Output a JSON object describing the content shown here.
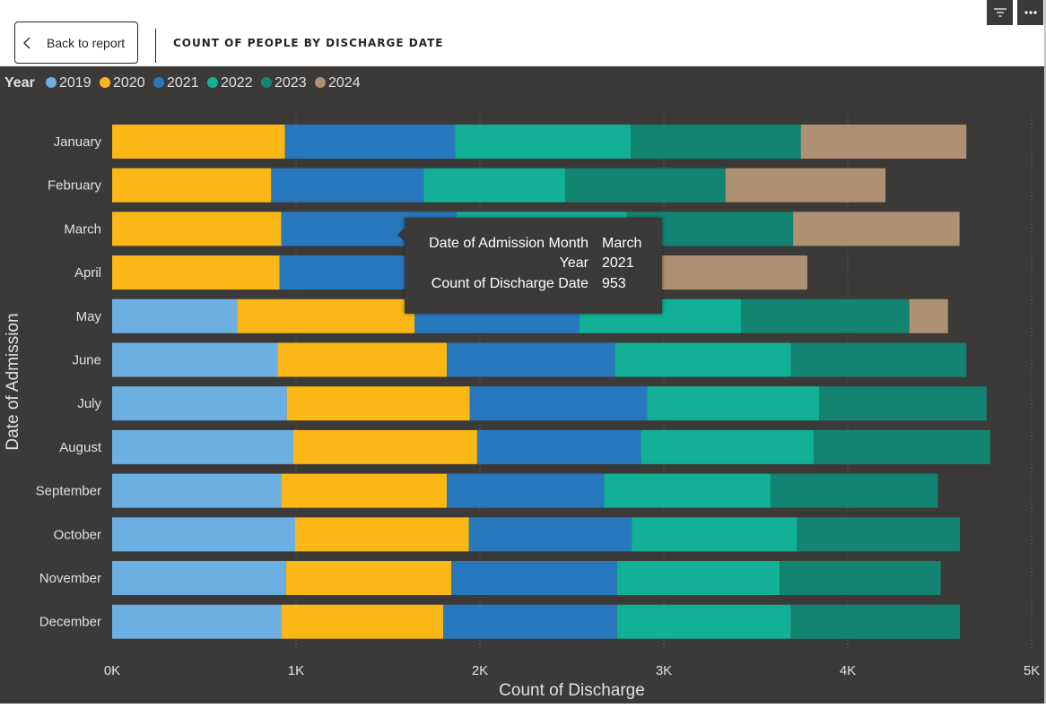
{
  "header": {
    "back_label": "Back to report",
    "title": "COUNT OF PEOPLE BY DISCHARGE DATE"
  },
  "icons": {
    "back": "chevron-left-icon",
    "filter": "filter-icon",
    "more": "more-options-icon"
  },
  "tooltip": {
    "rows": [
      {
        "key": "Date of Admission Month",
        "value": "March"
      },
      {
        "key": "Year",
        "value": "2021"
      },
      {
        "key": "Count of Discharge Date",
        "value": "953"
      }
    ]
  },
  "colors": {
    "background": "#3b3a39",
    "text": "#e0e0e0",
    "grid": "#6e6e6e"
  },
  "chart_data": {
    "type": "bar",
    "orientation": "horizontal",
    "stacked": true,
    "legend_title": "Year",
    "legend_position": "top-left",
    "xlabel": "Count of Discharge",
    "ylabel": "Date of Admission",
    "xlim": [
      0,
      5000
    ],
    "xticks": [
      0,
      1000,
      2000,
      3000,
      4000,
      5000
    ],
    "xtick_labels": [
      "0K",
      "1K",
      "2K",
      "3K",
      "4K",
      "5K"
    ],
    "grid": true,
    "categories": [
      "January",
      "February",
      "March",
      "April",
      "May",
      "June",
      "July",
      "August",
      "September",
      "October",
      "November",
      "December"
    ],
    "series": [
      {
        "name": "2019",
        "color": "#6cb0e3",
        "values": [
          0,
          0,
          0,
          0,
          680,
          900,
          950,
          985,
          920,
          995,
          945,
          920
        ]
      },
      {
        "name": "2020",
        "color": "#fbb716",
        "values": [
          940,
          865,
          920,
          910,
          965,
          920,
          995,
          1000,
          900,
          945,
          900,
          880
        ]
      },
      {
        "name": "2021",
        "color": "#2878be",
        "values": [
          925,
          830,
          953,
          1000,
          895,
          915,
          965,
          890,
          855,
          885,
          900,
          945
        ]
      },
      {
        "name": "2022",
        "color": "#12b096",
        "values": [
          955,
          770,
          925,
          930,
          880,
          955,
          935,
          940,
          905,
          900,
          885,
          945
        ]
      },
      {
        "name": "2023",
        "color": "#138472",
        "values": [
          925,
          870,
          905,
          0,
          915,
          955,
          910,
          960,
          910,
          885,
          875,
          920
        ]
      },
      {
        "name": "2024",
        "color": "#ae9172",
        "values": [
          900,
          870,
          905,
          940,
          210,
          0,
          0,
          0,
          0,
          0,
          0,
          0
        ]
      }
    ]
  }
}
